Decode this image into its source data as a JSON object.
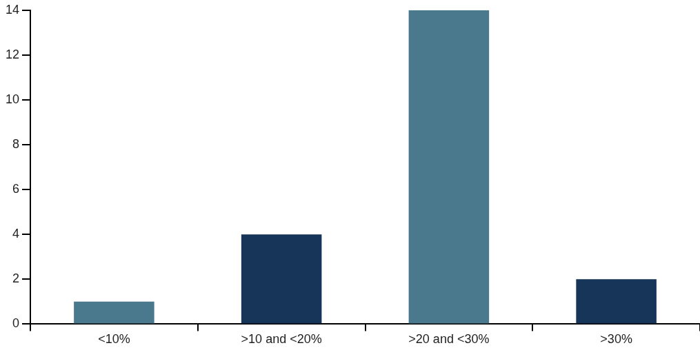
{
  "chart_data": {
    "type": "bar",
    "categories": [
      "<10%",
      ">10 and <20%",
      ">20 and <30%",
      ">30%"
    ],
    "values": [
      1,
      4,
      14,
      2
    ],
    "colors": [
      "#4a788c",
      "#163559",
      "#4a788c",
      "#163559"
    ],
    "ylim": [
      0,
      14
    ],
    "yticks": [
      0,
      2,
      4,
      6,
      8,
      10,
      12,
      14
    ],
    "grid": false,
    "legend": false
  }
}
